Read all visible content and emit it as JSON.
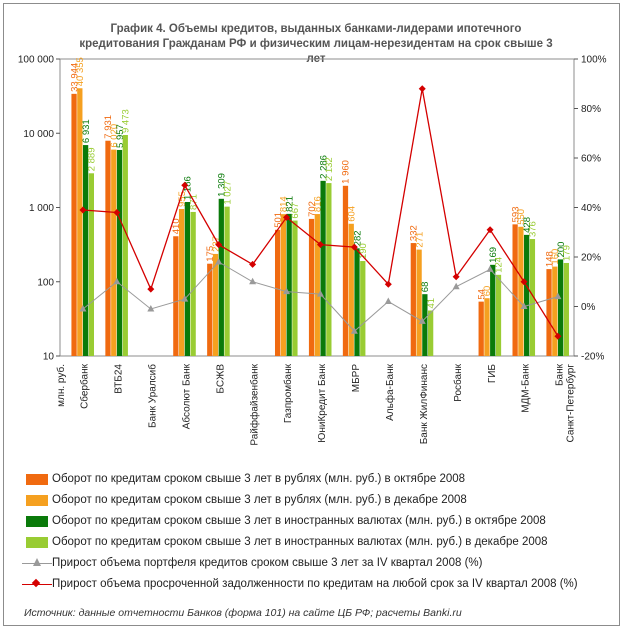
{
  "chart_data": {
    "type": "bar",
    "title": "График 4. Объемы кредитов, выданных банками-лидерами ипотечного кредитования Гражданам РФ и физическим лицам-нерезидентам на срок свыше 3 лет",
    "title_lines": [
      "График 4. Объемы кредитов, выданных банками-лидерами ипотечного",
      "кредитования Гражданам РФ и физическим лицам-нерезидентам на срок свыше 3",
      "лет"
    ],
    "unit_label": "млн. руб.",
    "y_scale": "log",
    "ylim": [
      10,
      100000
    ],
    "y_ticks": [
      "10",
      "100",
      "1 000",
      "10 000",
      "100 000"
    ],
    "y_tick_values": [
      10,
      100,
      1000,
      10000,
      100000
    ],
    "y2lim": [
      -20,
      100
    ],
    "y2_ticks": [
      "-20%",
      "0%",
      "20%",
      "40%",
      "60%",
      "80%",
      "100%"
    ],
    "y2_tick_values": [
      -20,
      0,
      20,
      40,
      60,
      80,
      100
    ],
    "categories": [
      "Сбербанк",
      "ВТБ24",
      "Банк Уралсиб",
      "Абсолют Банк",
      "БСЖВ",
      "Райффайзенбанк",
      "Газпромбанк",
      "ЮниКредит Банк",
      "МБРР",
      "Альфа-Банк",
      "Банк ЖилФинанс",
      "Росбанк",
      "ГИБ",
      "МДМ-Банк",
      "Банк Санкт-Петербург"
    ],
    "bar_series": [
      {
        "name": "Оборот по кредитам сроком свыше 3 лет в рублях (млн. руб.) в октябре 2008",
        "color": "#f06a10",
        "values": [
          33944,
          7931,
          null,
          410,
          175,
          null,
          501,
          702,
          1960,
          null,
          332,
          null,
          54,
          593,
          148
        ],
        "labels": [
          "33 944",
          "7 931",
          "",
          "410",
          "175",
          "",
          "501",
          "702",
          "1 960",
          "",
          "332",
          "",
          "54",
          "593",
          "148"
        ]
      },
      {
        "name": "Оборот по кредитам сроком свыше 3 лет в рублях (млн. руб.) в декабре 2008",
        "color": "#f5a020",
        "values": [
          40355,
          6020,
          null,
          955,
          237,
          null,
          814,
          816,
          604,
          null,
          271,
          null,
          60,
          550,
          160
        ],
        "labels": [
          "40 355",
          "6 020",
          "",
          "955",
          "237",
          "",
          "814",
          "816",
          "604",
          "",
          "271",
          "",
          "60",
          "550",
          "160"
        ]
      },
      {
        "name": "Оборот по кредитам сроком свыше 3 лет в иностранных валютах (млн. руб.) в октябре 2008",
        "color": "#0a7a0a",
        "values": [
          6931,
          5957,
          null,
          1186,
          1309,
          null,
          821,
          2286,
          282,
          null,
          68,
          null,
          169,
          428,
          200
        ],
        "labels": [
          "6 931",
          "5 957",
          "",
          "1 186",
          "1 309",
          "",
          "821",
          "2 286",
          "282",
          "",
          "68",
          "",
          "169",
          "428",
          "200"
        ]
      },
      {
        "name": "Оборот по кредитам сроком свыше 3 лет в иностранных валютах (млн. руб.) в декабре 2008",
        "color": "#99cc33",
        "values": [
          2889,
          9473,
          null,
          871,
          1027,
          null,
          667,
          2132,
          190,
          null,
          41,
          null,
          124,
          376,
          179
        ],
        "labels": [
          "2 889",
          "9 473",
          "",
          "871",
          "1 027",
          "",
          "667",
          "2 132",
          "190",
          "",
          "41",
          "",
          "124",
          "376",
          "179"
        ]
      }
    ],
    "line_series": [
      {
        "name": "Прирост объема портфеля кредитов сроком свыше 3 лет  за IV квартал 2008 (%)",
        "color": "#9a9a9a",
        "marker": "triangle",
        "values": [
          -1,
          10,
          -1,
          3,
          18,
          10,
          6,
          5,
          -10,
          2,
          -6,
          8,
          15,
          0,
          4
        ]
      },
      {
        "name": "Прирост объема просроченной задолженности по кредитам на любой срок за IV квартал 2008 (%)",
        "color": "#d40000",
        "marker": "diamond",
        "values": [
          39,
          38,
          7,
          49,
          25,
          17,
          36,
          25,
          24,
          9,
          88,
          12,
          31,
          10,
          -12
        ]
      }
    ],
    "legend_placement": "bottom",
    "source": "Источник: данные отчетности Банков (форма 101) на сайте ЦБ РФ; расчеты Banki.ru"
  }
}
